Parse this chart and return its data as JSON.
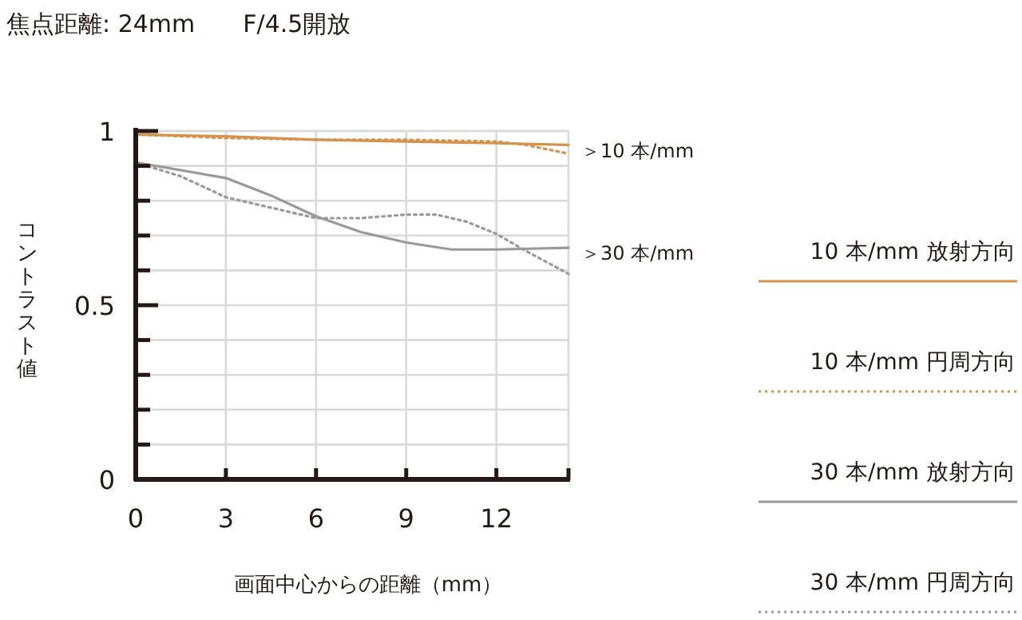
{
  "chart_data": {
    "type": "line",
    "title": "焦点距離: 24mm　　F/4.5開放",
    "xlabel": "画面中心からの距離（mm）",
    "ylabel": "コントラスト値",
    "xlim": [
      0,
      14.4
    ],
    "ylim": [
      0,
      1
    ],
    "xticks": [
      0,
      3,
      6,
      9,
      12
    ],
    "yticks": [
      0,
      {
        "value": 0.1,
        "label": null
      },
      {
        "value": 0.2,
        "label": null
      },
      {
        "value": 0.3,
        "label": null
      },
      {
        "value": 0.4,
        "label": null
      },
      0.5,
      {
        "value": 0.6,
        "label": null
      },
      {
        "value": 0.7,
        "label": null
      },
      {
        "value": 0.8,
        "label": null
      },
      {
        "value": 0.9,
        "label": null
      },
      1
    ],
    "grid": true,
    "legend": "right",
    "annotations": [
      {
        "text": "＞10 本/mm",
        "x": 14.4,
        "y": 0.96
      },
      {
        "text": "＞30 本/mm",
        "x": 14.4,
        "y": 0.667
      }
    ],
    "series": [
      {
        "name": "10 本/mm 放射方向",
        "color": "#d4924a",
        "line_style": "solid",
        "x": [
          0,
          3,
          6,
          9,
          12,
          14.4
        ],
        "values": [
          0.99,
          0.985,
          0.975,
          0.97,
          0.965,
          0.96
        ]
      },
      {
        "name": "10 本/mm 円周方向",
        "color": "#d4924a",
        "line_style": "dotted",
        "x": [
          0,
          3,
          6,
          9,
          12,
          13,
          14.4
        ],
        "values": [
          0.99,
          0.98,
          0.975,
          0.975,
          0.97,
          0.96,
          0.935
        ]
      },
      {
        "name": "30 本/mm 放射方向",
        "color": "#999999",
        "line_style": "solid",
        "x": [
          0,
          3,
          4.5,
          6,
          7.5,
          9,
          10.5,
          12,
          14.4
        ],
        "values": [
          0.91,
          0.865,
          0.815,
          0.755,
          0.71,
          0.68,
          0.66,
          0.66,
          0.665
        ]
      },
      {
        "name": "30 本/mm 円周方向",
        "color": "#999999",
        "line_style": "dotted",
        "x": [
          0,
          1.5,
          3,
          4.5,
          6,
          7.5,
          9,
          10,
          11,
          12,
          13,
          14.4
        ],
        "values": [
          0.91,
          0.87,
          0.81,
          0.78,
          0.75,
          0.75,
          0.76,
          0.76,
          0.74,
          0.705,
          0.655,
          0.59
        ]
      }
    ]
  }
}
